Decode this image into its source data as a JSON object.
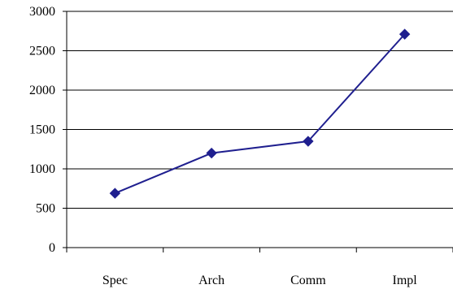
{
  "chart_data": {
    "type": "line",
    "categories": [
      "Spec",
      "Arch",
      "Comm",
      "Impl"
    ],
    "series": [
      {
        "values": [
          690,
          1200,
          1350,
          2710
        ],
        "color": "#1f1f8f",
        "marker": "diamond"
      }
    ],
    "title": "",
    "xlabel": "",
    "ylabel": "",
    "ylim": [
      0,
      3000
    ],
    "yticks": [
      0,
      500,
      1000,
      1500,
      2000,
      2500,
      3000
    ],
    "grid": true,
    "legend": "none"
  }
}
